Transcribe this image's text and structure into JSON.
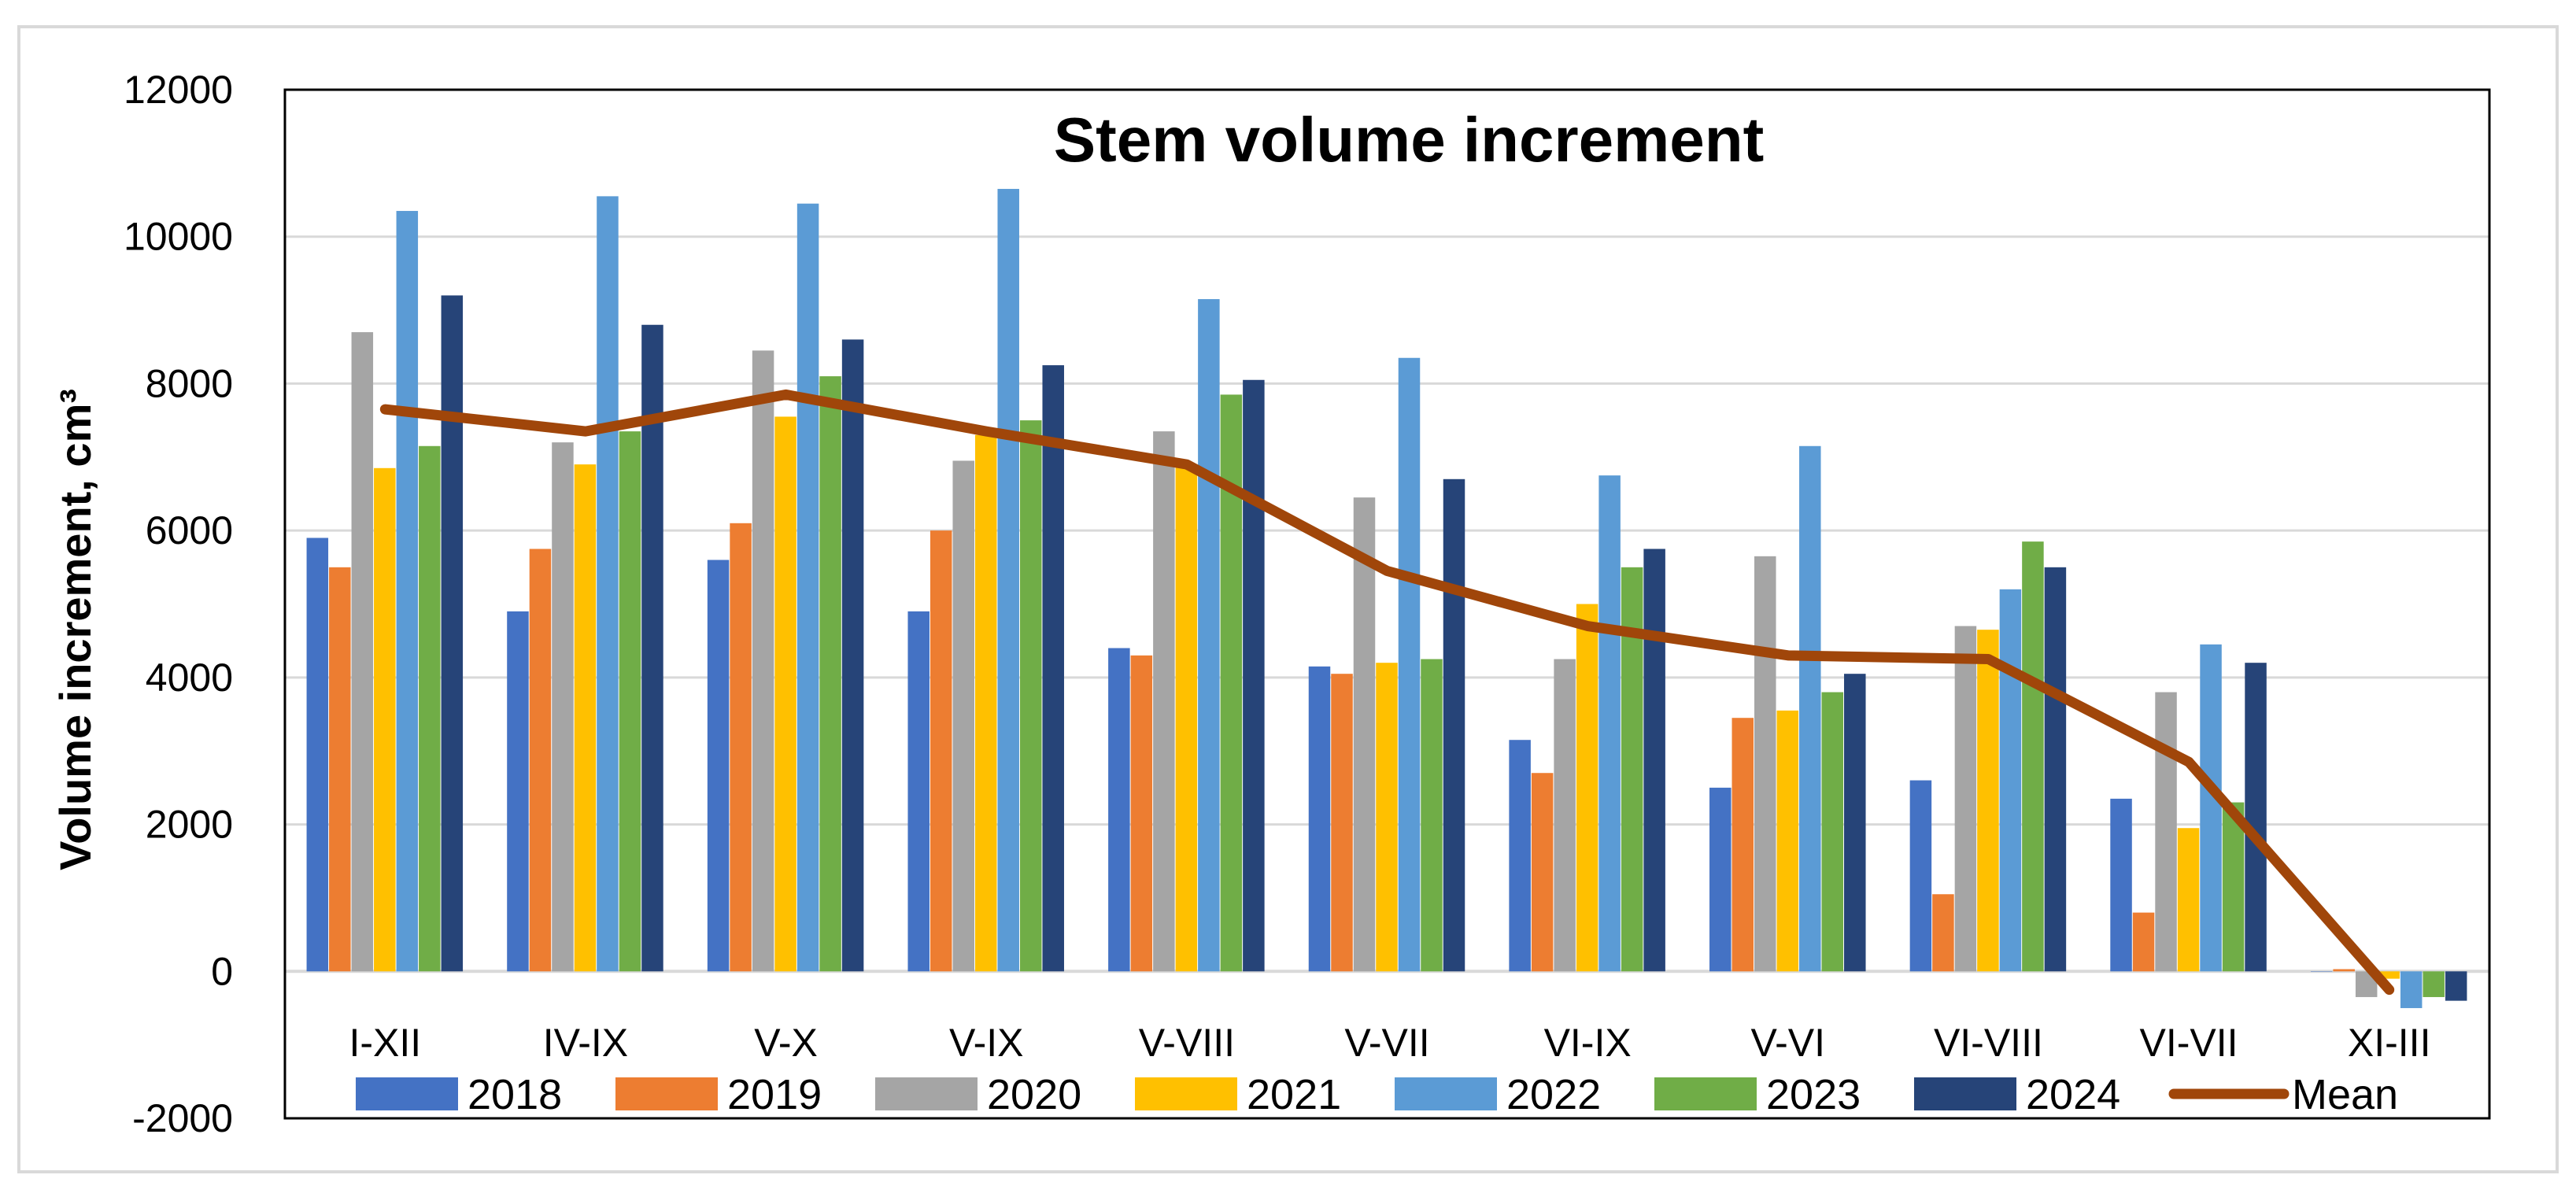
{
  "chart_data": {
    "type": "bar",
    "title": "Stem volume increment",
    "xlabel": "",
    "ylabel": "Volume increment, cm³",
    "ylim": [
      -2000,
      12000
    ],
    "yticks": [
      -2000,
      0,
      2000,
      4000,
      6000,
      8000,
      10000,
      12000
    ],
    "grid": true,
    "legend_position": "bottom",
    "categories": [
      "I-XII",
      "IV-IX",
      "V-X",
      "V-IX",
      "V-VIII",
      "V-VII",
      "VI-IX",
      "V-VI",
      "VI-VIII",
      "VI-VII",
      "XI-III"
    ],
    "series": [
      {
        "name": "2018",
        "color": "#4472C4",
        "values": [
          5900,
          4900,
          5600,
          4900,
          4400,
          4150,
          3150,
          2500,
          2600,
          2350,
          0
        ]
      },
      {
        "name": "2019",
        "color": "#ED7D31",
        "values": [
          5500,
          5750,
          6100,
          6000,
          4300,
          4050,
          2700,
          3450,
          1050,
          800,
          30
        ]
      },
      {
        "name": "2020",
        "color": "#A5A5A5",
        "values": [
          8700,
          7200,
          8450,
          6950,
          7350,
          6450,
          4250,
          5650,
          4700,
          3800,
          -350
        ]
      },
      {
        "name": "2021",
        "color": "#FFC000",
        "values": [
          6850,
          6900,
          7550,
          7300,
          6900,
          4200,
          5000,
          3550,
          4650,
          1950,
          -100
        ]
      },
      {
        "name": "2022",
        "color": "#5B9BD5",
        "values": [
          10350,
          10550,
          10450,
          10650,
          9150,
          8350,
          6750,
          7150,
          5200,
          4450,
          -500
        ]
      },
      {
        "name": "2023",
        "color": "#70AD47",
        "values": [
          7150,
          7350,
          8100,
          7500,
          7850,
          4250,
          5500,
          3800,
          5850,
          2300,
          -350
        ]
      },
      {
        "name": "2024",
        "color": "#264478",
        "values": [
          9200,
          8800,
          8600,
          8250,
          8050,
          6700,
          5750,
          4050,
          5500,
          4200,
          -400
        ]
      }
    ],
    "line_series": {
      "name": "Mean",
      "color": "#A0460A",
      "values": [
        7650,
        7350,
        7850,
        7350,
        6900,
        5450,
        4700,
        4300,
        4250,
        2850,
        -250
      ]
    }
  }
}
